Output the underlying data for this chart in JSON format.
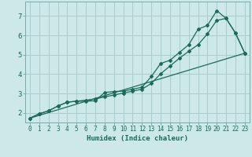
{
  "title": "",
  "xlabel": "Humidex (Indice chaleur)",
  "ylabel": "",
  "bg_color": "#cce8e8",
  "grid_color": "#aacccc",
  "line_color": "#1a6b5a",
  "xlim": [
    -0.5,
    23.5
  ],
  "ylim": [
    1.5,
    7.75
  ],
  "x_ticks": [
    0,
    1,
    2,
    3,
    4,
    5,
    6,
    7,
    8,
    9,
    10,
    11,
    12,
    13,
    14,
    15,
    16,
    17,
    18,
    19,
    20,
    21,
    22,
    23
  ],
  "y_ticks": [
    2,
    3,
    4,
    5,
    6,
    7
  ],
  "line1_x": [
    0,
    1,
    2,
    3,
    4,
    5,
    6,
    7,
    8,
    9,
    10,
    11,
    12,
    13,
    14,
    15,
    16,
    17,
    18,
    19,
    20,
    21,
    22,
    23
  ],
  "line1_y": [
    1.72,
    1.95,
    2.1,
    2.35,
    2.55,
    2.6,
    2.6,
    2.62,
    3.05,
    3.1,
    3.12,
    3.22,
    3.32,
    3.88,
    4.55,
    4.72,
    5.12,
    5.52,
    6.32,
    6.52,
    7.28,
    6.88,
    6.12,
    5.08
  ],
  "line2_x": [
    0,
    1,
    2,
    3,
    4,
    5,
    6,
    7,
    8,
    9,
    10,
    11,
    12,
    13,
    14,
    15,
    16,
    17,
    18,
    19,
    20,
    21,
    22,
    23
  ],
  "line2_y": [
    1.72,
    1.95,
    2.1,
    2.35,
    2.55,
    2.6,
    2.65,
    2.72,
    2.82,
    2.92,
    3.02,
    3.12,
    3.22,
    3.52,
    4.02,
    4.42,
    4.82,
    5.18,
    5.52,
    6.08,
    6.78,
    6.88,
    6.12,
    5.08
  ],
  "line3_x": [
    0,
    23
  ],
  "line3_y": [
    1.72,
    5.08
  ],
  "tick_fontsize": 5.5,
  "xlabel_fontsize": 6.5,
  "tick_color": "#1a6b5a",
  "spine_color": "#7aacac"
}
